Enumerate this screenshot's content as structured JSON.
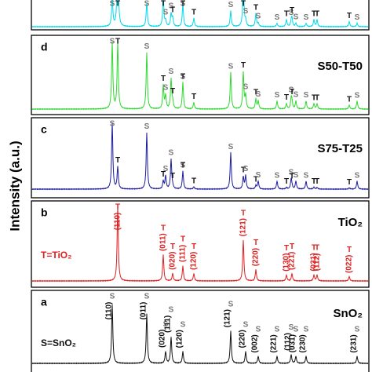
{
  "y_axis_label": "Intensity (a.u.)",
  "panels": [
    {
      "markers": [
        "S",
        "T",
        "S",
        "T",
        "S",
        "S",
        "T",
        "S",
        "T",
        "T",
        "S",
        "T",
        "S",
        "T",
        "S",
        "S",
        "T",
        "S",
        "T",
        "S",
        "S",
        "T",
        "T",
        "T",
        "S"
      ]
    },
    {
      "letter": "d",
      "name": "S50-T50",
      "markers": [
        "S",
        "T",
        "S",
        "T",
        "S",
        "S",
        "T",
        "S",
        "T",
        "T",
        "S",
        "T",
        "S",
        "T",
        "S",
        "S",
        "T",
        "S",
        "T",
        "S",
        "S",
        "T",
        "T",
        "T",
        "S"
      ]
    },
    {
      "letter": "c",
      "name": "S75-T25",
      "markers": [
        "S",
        "T",
        "S",
        "T",
        "S",
        "S",
        "T",
        "S",
        "T",
        "T",
        "S",
        "T",
        "S",
        "T",
        "S",
        "S",
        "T",
        "S",
        "T",
        "S",
        "S",
        "T",
        "T",
        "T",
        "S"
      ]
    },
    {
      "letter": "b",
      "name": "TiO₂",
      "legend": "T=TiO₂",
      "markers": [
        "T",
        "T",
        "T",
        "T",
        "T",
        "T",
        "T",
        "T",
        "T",
        "T",
        "T",
        "T"
      ],
      "peak_labels": [
        "(110)",
        "(011)",
        "(020)",
        "(111)",
        "(120)",
        "(121)",
        "(220)",
        "(130)",
        "(221)",
        "(031)",
        "(112)",
        "(022)"
      ]
    },
    {
      "letter": "a",
      "name": "SnO₂",
      "legend": "S=SnO₂",
      "markers": [
        "S",
        "S",
        "S",
        "S",
        "S",
        "S",
        "S",
        "S",
        "S",
        "S",
        "S",
        "S",
        "S"
      ],
      "peak_labels": [
        "(110)",
        "(011)",
        "(020)",
        "(111)",
        "(120)",
        "(121)",
        "(220)",
        "(002)",
        "(221)",
        "(112)",
        "(031)",
        "(230)",
        "(231)"
      ]
    }
  ]
}
